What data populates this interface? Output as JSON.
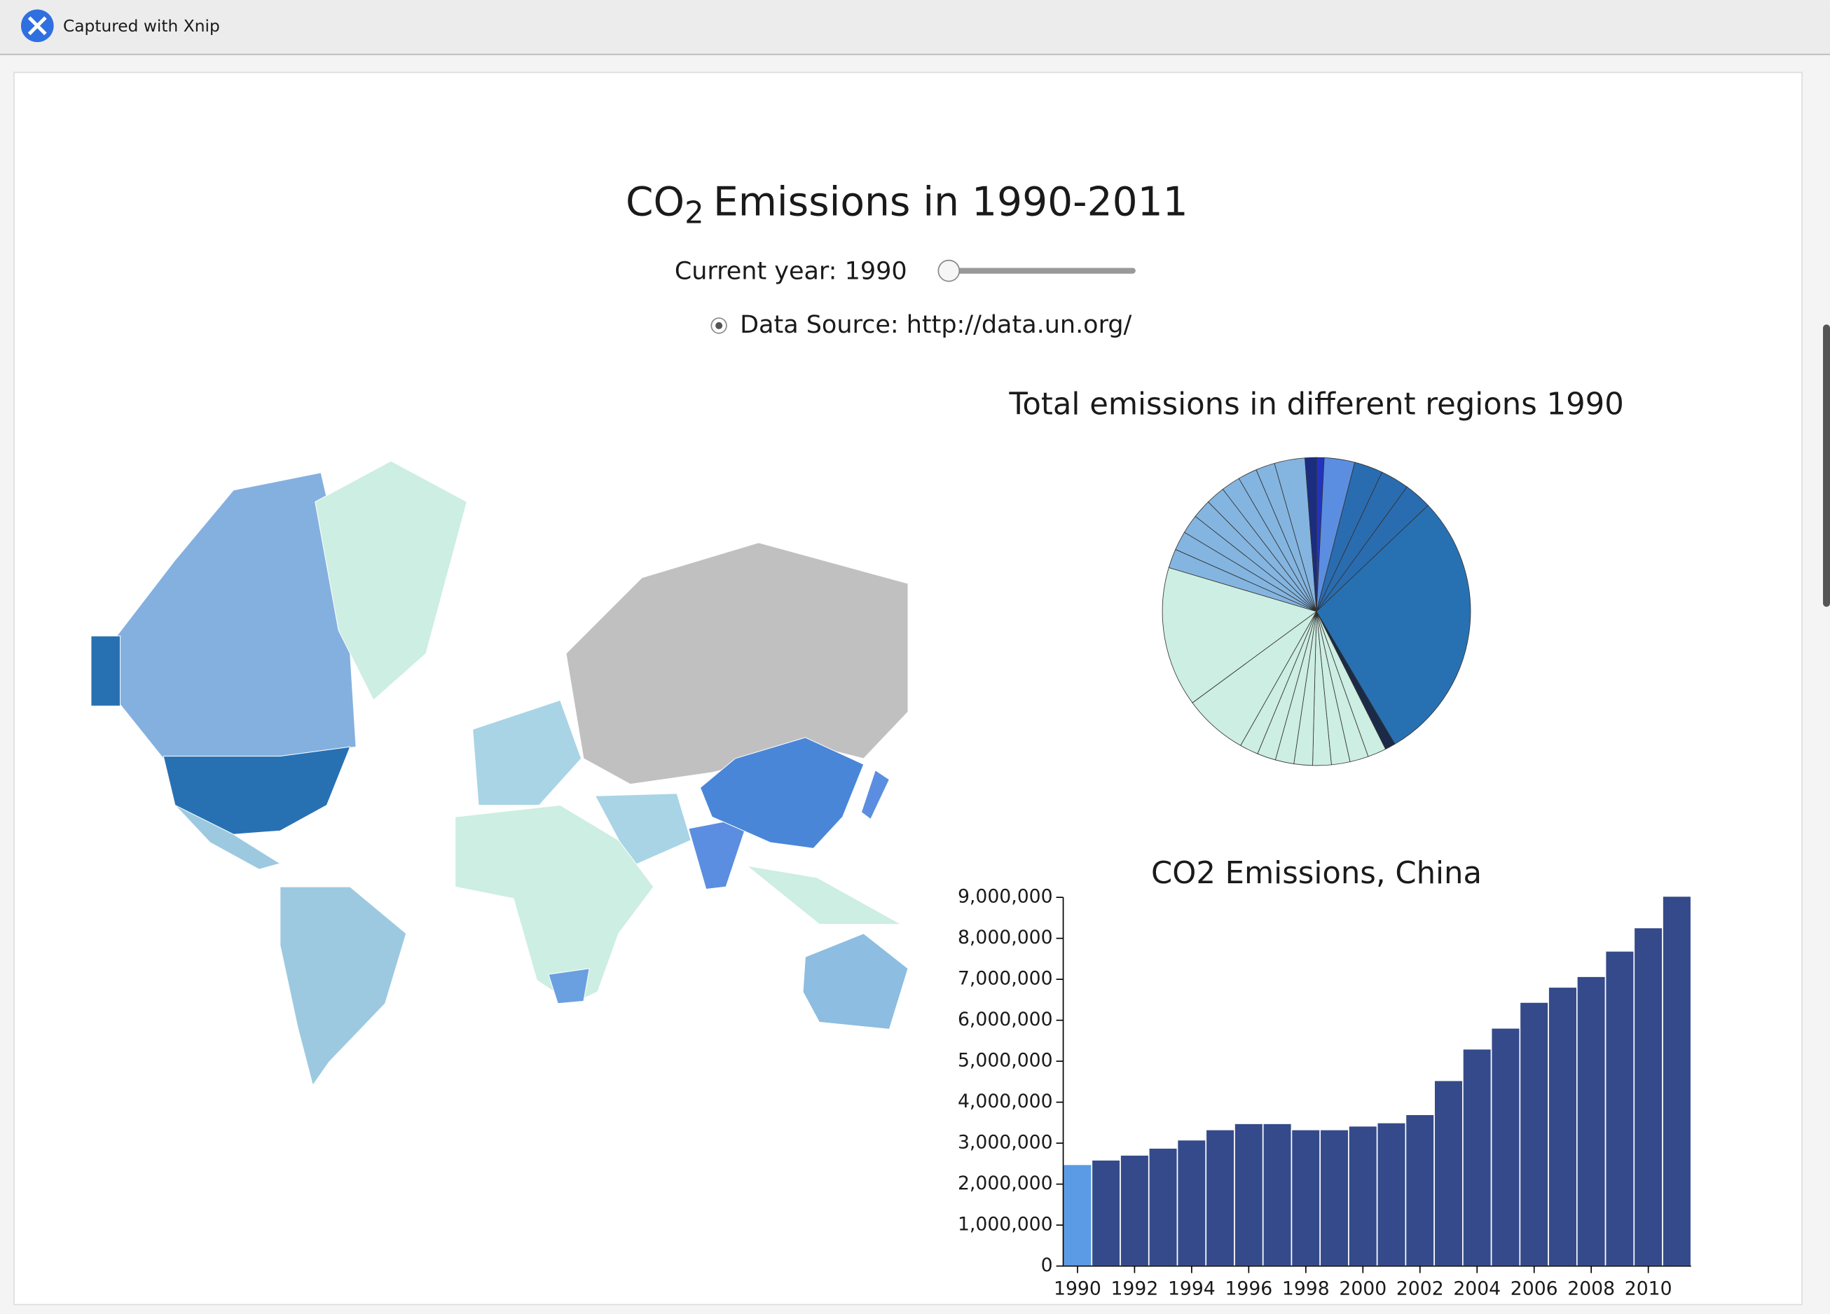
{
  "app_bar": {
    "caption": "Captured with Xnip"
  },
  "page": {
    "title": {
      "main": "CO",
      "subscript": "2",
      "rest": "Emissions in 1990-2011"
    },
    "year_label": "Current year: 1990",
    "source": "Data Source: http://data.un.org/"
  },
  "chart_data": [
    {
      "type": "pie",
      "title": "Total emissions in different regions 1990",
      "values": [
        0.8,
        3.2,
        3,
        3,
        2.9,
        28.6,
        1.1,
        1.95,
        1.95,
        1.95,
        1.95,
        1.95,
        1.95,
        1.95,
        1.95,
        6.7,
        14.7,
        2,
        2,
        2,
        2,
        2,
        2,
        2,
        2,
        3.2,
        1.2
      ],
      "colors": [
        "#2233c0",
        "#5b8ee0",
        "#2a6cb0",
        "#2a6cb0",
        "#2a6cb0",
        "#2771b3",
        "#1b2b47",
        "#cdeee2",
        "#cdeee2",
        "#cdeee2",
        "#cdeee2",
        "#cdeee2",
        "#cdeee2",
        "#cdeee2",
        "#cdeee2",
        "#cdeee2",
        "#cdeee2",
        "#84b5e0",
        "#84b5e0",
        "#84b5e0",
        "#84b5e0",
        "#84b5e0",
        "#84b5e0",
        "#84b5e0",
        "#84b5e0",
        "#84b5e0",
        "#1a2d80"
      ]
    },
    {
      "type": "bar",
      "title": "CO2 Emissions, China",
      "x": [
        1990,
        1991,
        1992,
        1993,
        1994,
        1995,
        1996,
        1997,
        1998,
        1999,
        2000,
        2001,
        2002,
        2003,
        2004,
        2005,
        2006,
        2007,
        2008,
        2009,
        2010,
        2011
      ],
      "values": [
        2480000,
        2590000,
        2710000,
        2880000,
        3080000,
        3330000,
        3480000,
        3480000,
        3330000,
        3330000,
        3420000,
        3500000,
        3700000,
        4530000,
        5300000,
        5810000,
        6440000,
        6810000,
        7070000,
        7690000,
        8260000,
        9030000
      ],
      "color": "#344a8a",
      "highlight_color": "#5b9be6",
      "selected_x": 1990,
      "xlim": [
        1989.5,
        2011.5
      ],
      "xticks": [
        1990,
        1992,
        1994,
        1996,
        1998,
        2000,
        2002,
        2004,
        2006,
        2008,
        2010
      ],
      "ylim": [
        0,
        9000000
      ],
      "yticks": [
        0,
        {
          "value": 1000000,
          "label": "1,000,000"
        },
        {
          "value": 2000000,
          "label": "2,000,000"
        },
        {
          "value": 3000000,
          "label": "3,000,000"
        },
        {
          "value": 4000000,
          "label": "4,000,000"
        },
        {
          "value": 5000000,
          "label": "5,000,000"
        },
        {
          "value": 6000000,
          "label": "6,000,000"
        },
        {
          "value": 7000000,
          "label": "7,000,000"
        },
        {
          "value": 8000000,
          "label": "8,000,000"
        },
        {
          "value": 9000000,
          "label": "9,000,000"
        }
      ]
    }
  ]
}
